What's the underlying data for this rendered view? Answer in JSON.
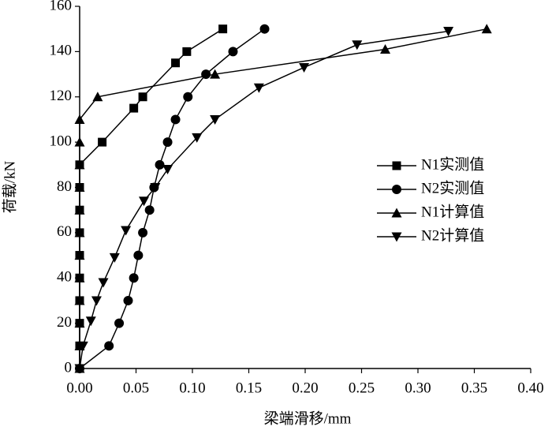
{
  "chart_data": {
    "type": "line",
    "xlabel": "梁端滑移/mm",
    "ylabel": "荷载/kN",
    "xlim": [
      0,
      0.4
    ],
    "xticks": [
      {
        "value": 0,
        "label": "0.00"
      },
      {
        "value": 0.05,
        "label": "0.05"
      },
      {
        "value": 0.1,
        "label": "0.10"
      },
      {
        "value": 0.15,
        "label": "0.15"
      },
      {
        "value": 0.2,
        "label": "0.20"
      },
      {
        "value": 0.25,
        "label": "0.25"
      },
      {
        "value": 0.3,
        "label": "0.30"
      },
      {
        "value": 0.35,
        "label": "0.35"
      },
      {
        "value": 0.4,
        "label": "0.40"
      }
    ],
    "ylim": [
      0,
      160
    ],
    "yticks": [
      0,
      20,
      40,
      60,
      80,
      100,
      120,
      140,
      160
    ],
    "legend": "right",
    "series": [
      {
        "name": "N1实测值",
        "color": "#000000",
        "marker": "square",
        "x": [
          0,
          0,
          0,
          0,
          0,
          0,
          0,
          0,
          0,
          0,
          0.02,
          0.048,
          0.056,
          0.085,
          0.095,
          0.127
        ],
        "values": [
          0,
          10,
          20,
          30,
          40,
          50,
          60,
          70,
          80,
          90,
          100,
          115,
          120,
          135,
          140,
          150
        ]
      },
      {
        "name": "N2实测值",
        "color": "#000000",
        "marker": "circle",
        "x": [
          0,
          0.026,
          0.035,
          0.043,
          0.048,
          0.052,
          0.056,
          0.062,
          0.066,
          0.071,
          0.078,
          0.085,
          0.096,
          0.112,
          0.136,
          0.164
        ],
        "values": [
          0,
          10,
          20,
          30,
          40,
          50,
          60,
          70,
          80,
          90,
          100,
          110,
          120,
          130,
          140,
          150
        ]
      },
      {
        "name": "N1计算值",
        "color": "#000000",
        "marker": "triangle-up",
        "x": [
          0,
          0,
          0,
          0,
          0,
          0,
          0,
          0,
          0,
          0,
          0,
          0,
          0.016,
          0.12,
          0.271,
          0.361
        ],
        "values": [
          0,
          10,
          20,
          30,
          40,
          50,
          60,
          70,
          80,
          90,
          100,
          110,
          120,
          130,
          141,
          150
        ]
      },
      {
        "name": "N2计算值",
        "color": "#000000",
        "marker": "triangle-down",
        "x": [
          0,
          0.003,
          0.01,
          0.015,
          0.021,
          0.031,
          0.041,
          0.057,
          0.067,
          0.078,
          0.104,
          0.12,
          0.159,
          0.199,
          0.246,
          0.327
        ],
        "values": [
          0,
          10,
          21,
          30,
          38,
          49,
          61,
          74,
          80,
          88,
          102,
          110,
          124,
          133,
          143,
          149
        ]
      }
    ]
  }
}
